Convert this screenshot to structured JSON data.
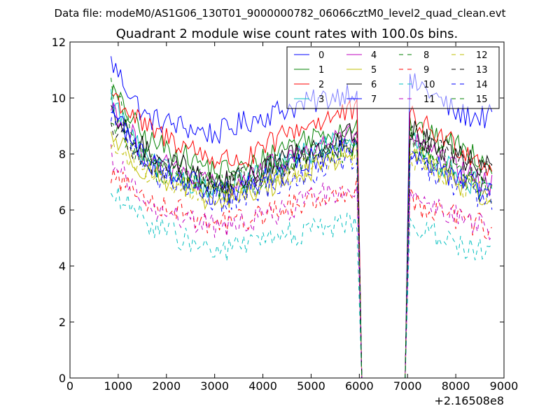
{
  "chart_data": {
    "type": "line",
    "suptitle": "Data file: modeM0/AS1G06_130T01_9000000782_06066cztM0_level2_quad_clean.evt",
    "title": "Quadrant 2 module wise count rates with 100.0s bins.",
    "xlabel": "",
    "ylabel": "",
    "x_offset_label": "+2.16508e8",
    "xlim": [
      0,
      9000
    ],
    "ylim": [
      0,
      12
    ],
    "xticks": [
      0,
      1000,
      2000,
      3000,
      4000,
      5000,
      6000,
      7000,
      8000,
      9000
    ],
    "yticks": [
      0,
      2,
      4,
      6,
      8,
      10,
      12
    ],
    "legend_position": "top-right",
    "gap": {
      "drop_start": 5950,
      "zero_start": 6050,
      "zero_end": 6950,
      "rise_end": 7050
    },
    "x_range": {
      "start": 850,
      "end": 8750
    },
    "series": [
      {
        "name": "0",
        "color": "#0000ff",
        "style": "solid",
        "levels": [
          11.3,
          9.3,
          9.0,
          8.7,
          9.2,
          9.6,
          9.9,
          10.3,
          10.6,
          10.4,
          9.4,
          9.3
        ]
      },
      {
        "name": "1",
        "color": "#008000",
        "style": "solid",
        "levels": [
          10.3,
          8.5,
          8.0,
          7.4,
          7.5,
          8.3,
          8.7,
          9.0,
          9.6,
          8.7,
          8.3,
          7.7
        ]
      },
      {
        "name": "2",
        "color": "#ff0000",
        "style": "solid",
        "levels": [
          10.2,
          8.9,
          8.4,
          7.8,
          7.8,
          8.7,
          9.2,
          9.5,
          9.9,
          9.0,
          8.3,
          7.5
        ]
      },
      {
        "name": "3",
        "color": "#00bfbf",
        "style": "solid",
        "levels": [
          10.0,
          7.7,
          7.2,
          6.7,
          7.1,
          7.7,
          8.2,
          8.6,
          9.3,
          8.0,
          7.3,
          6.6
        ]
      },
      {
        "name": "4",
        "color": "#bf00bf",
        "style": "solid",
        "levels": [
          9.8,
          7.9,
          7.3,
          6.8,
          7.1,
          7.8,
          8.3,
          8.7,
          9.3,
          8.2,
          7.4,
          6.8
        ]
      },
      {
        "name": "5",
        "color": "#bfbf00",
        "style": "solid",
        "levels": [
          8.7,
          7.4,
          6.9,
          6.2,
          6.6,
          7.1,
          7.6,
          8.1,
          8.8,
          7.8,
          7.0,
          6.4
        ]
      },
      {
        "name": "6",
        "color": "#000000",
        "style": "solid",
        "levels": [
          9.3,
          8.1,
          7.6,
          6.9,
          7.2,
          7.9,
          8.3,
          8.8,
          9.2,
          8.6,
          7.9,
          7.5
        ]
      },
      {
        "name": "7",
        "color": "#0000ff",
        "style": "solid",
        "levels": [
          9.6,
          7.8,
          7.2,
          6.5,
          6.8,
          7.4,
          7.9,
          8.4,
          9.3,
          7.8,
          7.1,
          6.5
        ]
      },
      {
        "name": "8",
        "color": "#008000",
        "style": "dashed",
        "levels": [
          10.5,
          7.6,
          7.1,
          6.7,
          6.9,
          7.4,
          7.9,
          8.2,
          8.9,
          8.0,
          7.3,
          6.5
        ]
      },
      {
        "name": "9",
        "color": "#ff0000",
        "style": "dashed",
        "levels": [
          7.3,
          6.4,
          6.0,
          5.5,
          5.7,
          6.1,
          6.4,
          6.8,
          7.4,
          6.1,
          5.7,
          5.3
        ]
      },
      {
        "name": "10",
        "color": "#00bfbf",
        "style": "dashed",
        "levels": [
          6.6,
          5.6,
          5.0,
          4.5,
          4.8,
          5.1,
          5.3,
          5.6,
          6.1,
          5.3,
          4.8,
          4.4
        ]
      },
      {
        "name": "11",
        "color": "#bf00bf",
        "style": "dashed",
        "levels": [
          8.0,
          6.1,
          5.7,
          5.4,
          5.6,
          6.0,
          6.5,
          6.9,
          7.5,
          6.2,
          5.8,
          5.3
        ]
      },
      {
        "name": "12",
        "color": "#bfbf00",
        "style": "dashed",
        "levels": [
          8.4,
          7.3,
          6.9,
          6.5,
          6.8,
          7.2,
          7.6,
          8.0,
          8.8,
          7.6,
          7.0,
          6.4
        ]
      },
      {
        "name": "13",
        "color": "#000000",
        "style": "dashed",
        "levels": [
          9.0,
          7.7,
          7.3,
          6.9,
          7.2,
          7.6,
          8.0,
          8.4,
          9.0,
          8.5,
          7.8,
          7.3
        ]
      },
      {
        "name": "14",
        "color": "#0000ff",
        "style": "dashed",
        "levels": [
          9.6,
          7.4,
          6.9,
          6.3,
          6.6,
          7.0,
          7.4,
          7.9,
          8.6,
          7.6,
          6.9,
          6.3
        ]
      },
      {
        "name": "15",
        "color": "#008000",
        "style": "dashed",
        "levels": [
          9.2,
          7.8,
          7.3,
          6.9,
          7.1,
          7.6,
          8.0,
          8.4,
          9.0,
          8.3,
          7.5,
          6.9
        ]
      }
    ]
  }
}
